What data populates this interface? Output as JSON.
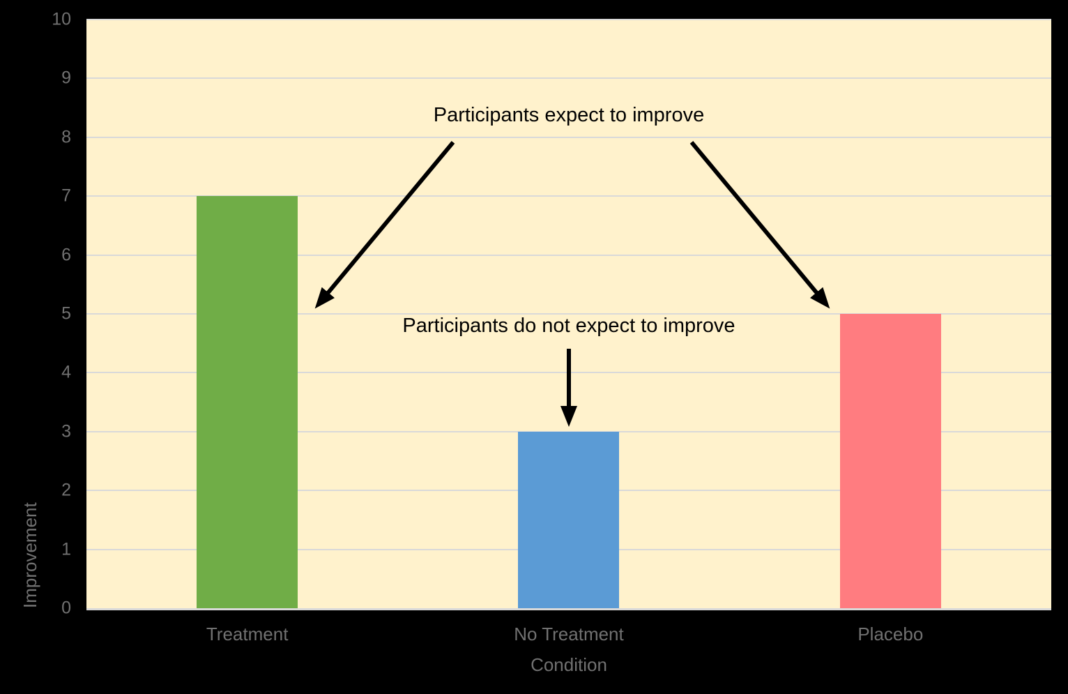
{
  "chart_data": {
    "type": "bar",
    "categories": [
      "Treatment",
      "No Treatment",
      "Placebo"
    ],
    "values": [
      7,
      3,
      5
    ],
    "title": "",
    "xlabel": "Condition",
    "ylabel": "Improvement",
    "ylim": [
      0,
      10
    ],
    "yticks": [
      0,
      1,
      2,
      3,
      4,
      5,
      6,
      7,
      8,
      9,
      10
    ],
    "grid": true,
    "legend": false,
    "bar_colors": [
      "#70AD47",
      "#5B9BD5",
      "#FF7C80"
    ],
    "colors": {
      "page_background": "#000000",
      "plot_background": "#FFF2CC",
      "gridline": "#D9D9D9",
      "axis_line": "#D9D9D9",
      "axis_text": "#717171",
      "annotation_text": "#000000",
      "arrow": "#000000"
    },
    "annotations": [
      {
        "text": "Participants expect to improve",
        "targets": [
          "Treatment",
          "Placebo"
        ]
      },
      {
        "text": "Participants do not expect to improve",
        "targets": [
          "No Treatment"
        ]
      }
    ]
  }
}
